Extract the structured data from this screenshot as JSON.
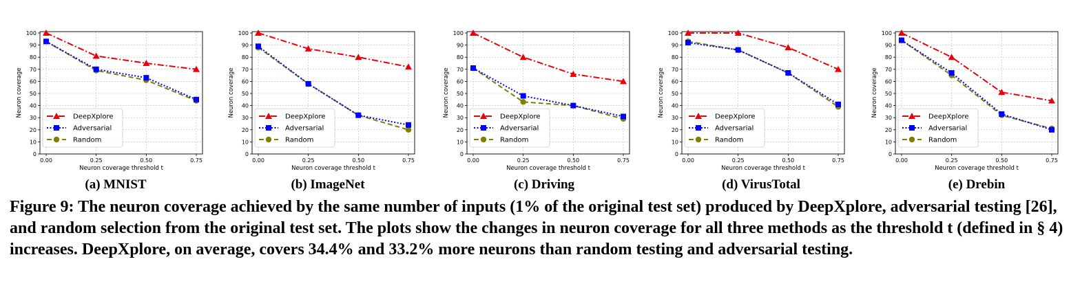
{
  "chart_data": [
    {
      "type": "line",
      "caption": "(a) MNIST",
      "xlabel": "Neuron coverage threshold t",
      "ylabel": "Neuron coverage",
      "x": [
        0.0,
        0.25,
        0.5,
        0.75
      ],
      "x_ticks": [
        "0.00",
        "0.25",
        "0.50",
        "0.75"
      ],
      "y_ticks": [
        "0",
        "10",
        "20",
        "30",
        "40",
        "50",
        "60",
        "70",
        "80",
        "90",
        "100"
      ],
      "ylim": [
        0,
        100
      ],
      "grid": true,
      "legend": "lower-left",
      "series": [
        {
          "name": "DeepXplore",
          "values": [
            100,
            81,
            75,
            70
          ]
        },
        {
          "name": "Adversarial",
          "values": [
            93,
            70,
            63,
            45
          ]
        },
        {
          "name": "Random",
          "values": [
            93,
            69,
            61,
            44
          ]
        }
      ]
    },
    {
      "type": "line",
      "caption": "(b) ImageNet",
      "xlabel": "Neuron coverage threshold t",
      "ylabel": "Neuron coverage",
      "x": [
        0.0,
        0.25,
        0.5,
        0.75
      ],
      "x_ticks": [
        "0.00",
        "0.25",
        "0.50",
        "0.75"
      ],
      "y_ticks": [
        "0",
        "10",
        "20",
        "30",
        "40",
        "50",
        "60",
        "70",
        "80",
        "90",
        "100"
      ],
      "ylim": [
        0,
        100
      ],
      "grid": true,
      "legend": "lower-left",
      "series": [
        {
          "name": "DeepXplore",
          "values": [
            100,
            87,
            80,
            72
          ]
        },
        {
          "name": "Adversarial",
          "values": [
            89,
            58,
            32,
            24
          ]
        },
        {
          "name": "Random",
          "values": [
            88,
            58,
            32,
            20
          ]
        }
      ]
    },
    {
      "type": "line",
      "caption": "(c) Driving",
      "xlabel": "Neuron coverage threshold t",
      "ylabel": "Neuron coverage",
      "x": [
        0.0,
        0.25,
        0.5,
        0.75
      ],
      "x_ticks": [
        "0.00",
        "0.25",
        "0.50",
        "0.75"
      ],
      "y_ticks": [
        "0",
        "10",
        "20",
        "30",
        "40",
        "50",
        "60",
        "70",
        "80",
        "90",
        "100"
      ],
      "ylim": [
        0,
        100
      ],
      "grid": true,
      "legend": "lower-left",
      "series": [
        {
          "name": "DeepXplore",
          "values": [
            100,
            80,
            66,
            60
          ]
        },
        {
          "name": "Adversarial",
          "values": [
            71,
            48,
            40,
            31
          ]
        },
        {
          "name": "Random",
          "values": [
            71,
            43,
            40,
            29
          ]
        }
      ]
    },
    {
      "type": "line",
      "caption": "(d) VirusTotal",
      "xlabel": "Neuron coverage threshold t",
      "ylabel": "Neuron coverage",
      "x": [
        0.0,
        0.25,
        0.5,
        0.75
      ],
      "x_ticks": [
        "0.00",
        "0.25",
        "0.50",
        "0.75"
      ],
      "y_ticks": [
        "0",
        "10",
        "20",
        "30",
        "40",
        "50",
        "60",
        "70",
        "80",
        "90",
        "100"
      ],
      "ylim": [
        0,
        100
      ],
      "grid": true,
      "legend": "lower-left",
      "series": [
        {
          "name": "DeepXplore",
          "values": [
            100,
            100,
            88,
            70
          ]
        },
        {
          "name": "Adversarial",
          "values": [
            92,
            86,
            67,
            41
          ]
        },
        {
          "name": "Random",
          "values": [
            93,
            86,
            67,
            39
          ]
        }
      ]
    },
    {
      "type": "line",
      "caption": "(e) Drebin",
      "xlabel": "Neuron coverage threshold t",
      "ylabel": "Neuron coverage",
      "x": [
        0.0,
        0.25,
        0.5,
        0.75
      ],
      "x_ticks": [
        "0.00",
        "0.25",
        "0.50",
        "0.75"
      ],
      "y_ticks": [
        "0",
        "10",
        "20",
        "30",
        "40",
        "50",
        "60",
        "70",
        "80",
        "90",
        "100"
      ],
      "ylim": [
        0,
        100
      ],
      "grid": true,
      "legend": "lower-left",
      "series": [
        {
          "name": "DeepXplore",
          "values": [
            100,
            80,
            51,
            44
          ]
        },
        {
          "name": "Adversarial",
          "values": [
            94,
            67,
            33,
            20
          ]
        },
        {
          "name": "Random",
          "values": [
            94,
            65,
            32,
            21
          ]
        }
      ]
    }
  ],
  "series_style": {
    "DeepXplore": {
      "color": "#e8000b",
      "marker": "triangle",
      "dash": "dash-dot"
    },
    "Adversarial": {
      "color": "#0000ff",
      "marker": "square",
      "dash": "dotted"
    },
    "Random": {
      "color": "#808000",
      "marker": "circle",
      "dash": "dashed"
    }
  },
  "figure_caption": "Figure 9: The neuron coverage achieved by the same number of inputs (1% of the original test set) produced by DeepXplore, adversarial testing [26], and random selection from the original test set. The plots show the changes in neuron coverage for all three methods as the threshold t (defined in § 4) increases. DeepXplore, on average, covers 34.4% and 33.2% more neurons than random testing and adversarial testing."
}
